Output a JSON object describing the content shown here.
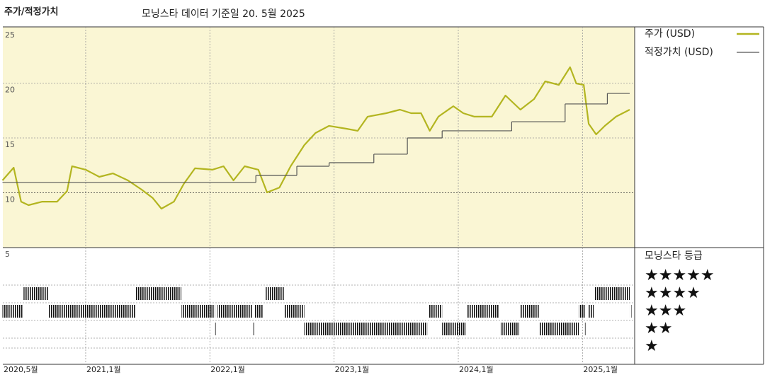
{
  "chart_data": {
    "type": "line",
    "title": "모닝스타 데이터 기준일 20. 5월 2025",
    "y_title": "주가/적정가치",
    "xlim": [
      2020.333,
      2025.42
    ],
    "xticks": [
      {
        "value": 2020.333,
        "label": "2020,5월"
      },
      {
        "value": 2021,
        "label": "2021,1월"
      },
      {
        "value": 2022,
        "label": "2022,1월"
      },
      {
        "value": 2023,
        "label": "2023,1월"
      },
      {
        "value": 2024,
        "label": "2024,1월"
      },
      {
        "value": 2025,
        "label": "2025,1월"
      }
    ],
    "ylim": [
      5,
      25
    ],
    "yticks": [
      5,
      10,
      15,
      20,
      25
    ],
    "grid": true,
    "series": [
      {
        "name": "주가 (USD)",
        "color": "#b3b520",
        "x": [
          2020.33,
          2020.42,
          2020.48,
          2020.54,
          2020.65,
          2020.77,
          2020.85,
          2020.89,
          2021.0,
          2021.11,
          2021.22,
          2021.34,
          2021.45,
          2021.54,
          2021.61,
          2021.71,
          2021.79,
          2021.88,
          2022.02,
          2022.11,
          2022.19,
          2022.28,
          2022.39,
          2022.46,
          2022.56,
          2022.65,
          2022.76,
          2022.85,
          2022.96,
          2023.1,
          2023.19,
          2023.27,
          2023.42,
          2023.53,
          2023.62,
          2023.7,
          2023.77,
          2023.84,
          2023.96,
          2024.04,
          2024.13,
          2024.27,
          2024.38,
          2024.5,
          2024.61,
          2024.7,
          2024.81,
          2024.9,
          2024.95,
          2025.01,
          2025.05,
          2025.11,
          2025.18,
          2025.27,
          2025.38
        ],
        "values": [
          11.13,
          12.29,
          9.19,
          8.87,
          9.19,
          9.19,
          10.16,
          12.42,
          12.1,
          11.45,
          11.77,
          11.13,
          10.29,
          9.52,
          8.55,
          9.19,
          10.81,
          12.23,
          12.1,
          12.42,
          11.13,
          12.42,
          12.1,
          10.03,
          10.48,
          12.42,
          14.35,
          15.45,
          16.1,
          15.84,
          15.65,
          16.94,
          17.26,
          17.58,
          17.26,
          17.26,
          15.65,
          16.94,
          17.9,
          17.26,
          16.94,
          16.94,
          18.87,
          17.58,
          18.55,
          20.16,
          19.84,
          21.45,
          19.97,
          19.84,
          16.29,
          15.32,
          16.1,
          16.94,
          17.58
        ]
      },
      {
        "name": "적정가치 (USD)",
        "color": "#555555",
        "step": "after",
        "x": [
          2020.33,
          2022.37,
          2022.7,
          2022.96,
          2023.32,
          2023.59,
          2023.87,
          2024.43,
          2024.86,
          2025.2,
          2025.38
        ],
        "values": [
          10.94,
          11.58,
          12.42,
          12.74,
          13.52,
          15.0,
          15.65,
          16.48,
          18.1,
          19.06,
          19.06
        ]
      }
    ],
    "rating_title": "모닝스타 등급",
    "rating_labels": [
      "★★★★★",
      "★★★★",
      "★★★",
      "★★",
      "★"
    ],
    "ratings": [
      {
        "start": 2020.33,
        "end": 2020.49,
        "stars": 3
      },
      {
        "start": 2020.5,
        "end": 2020.7,
        "stars": 4
      },
      {
        "start": 2020.704,
        "end": 2021.4,
        "stars": 3
      },
      {
        "start": 2021.4,
        "end": 2021.77,
        "stars": 4
      },
      {
        "start": 2021.77,
        "end": 2022.04,
        "stars": 3
      },
      {
        "start": 2022.043,
        "end": 2022.05,
        "stars": 2
      },
      {
        "start": 2022.06,
        "end": 2022.34,
        "stars": 3
      },
      {
        "start": 2022.35,
        "end": 2022.36,
        "stars": 2
      },
      {
        "start": 2022.363,
        "end": 2022.43,
        "stars": 3
      },
      {
        "start": 2022.45,
        "end": 2022.6,
        "stars": 4
      },
      {
        "start": 2022.6,
        "end": 2022.76,
        "stars": 3
      },
      {
        "start": 2022.76,
        "end": 2023.75,
        "stars": 2
      },
      {
        "start": 2023.76,
        "end": 2023.87,
        "stars": 3
      },
      {
        "start": 2023.87,
        "end": 2024.06,
        "stars": 2
      },
      {
        "start": 2024.07,
        "end": 2024.33,
        "stars": 3
      },
      {
        "start": 2024.34,
        "end": 2024.49,
        "stars": 2
      },
      {
        "start": 2024.5,
        "end": 2024.65,
        "stars": 3
      },
      {
        "start": 2024.65,
        "end": 2024.97,
        "stars": 2
      },
      {
        "start": 2024.97,
        "end": 2025.02,
        "stars": 3
      },
      {
        "start": 2025.02,
        "end": 2025.03,
        "stars": 2
      },
      {
        "start": 2025.05,
        "end": 2025.09,
        "stars": 3
      },
      {
        "start": 2025.1,
        "end": 2025.38,
        "stars": 4
      },
      {
        "start": 2025.383,
        "end": 2025.39,
        "stars": 3
      }
    ]
  }
}
